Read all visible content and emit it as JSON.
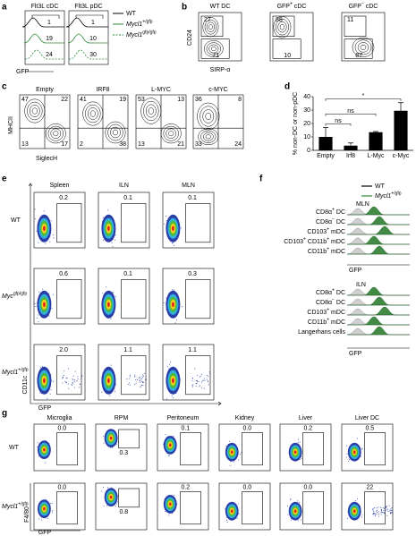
{
  "panels": {
    "a": {
      "label": "a",
      "titles": [
        "Flt3L cDC",
        "Flt3L pDC"
      ],
      "gates": [
        [
          "1",
          "19",
          "24"
        ],
        [
          "1",
          "10",
          "30"
        ]
      ],
      "x_axis": "GFP",
      "legend": [
        [
          "WT"
        ],
        [
          "Mycl1",
          "+/gfp"
        ],
        [
          "Mycl1",
          "gfp/gfp"
        ]
      ]
    },
    "b": {
      "label": "b",
      "titles": [
        [
          "WT DC"
        ],
        [
          "GFP",
          "+",
          " cDC"
        ],
        [
          "GFP",
          "−",
          " cDC"
        ]
      ],
      "gates": [
        [
          "27",
          "71"
        ],
        [
          "88",
          "10"
        ],
        [
          "11",
          "87"
        ]
      ],
      "y_axis": "CD24",
      "x_axis": "SIRP-α"
    },
    "c": {
      "label": "c",
      "titles": [
        "Empty",
        "IRF8",
        "L-MYC",
        "c-MYC"
      ],
      "quadrants": [
        [
          "47",
          "22",
          "13",
          "17"
        ],
        [
          "41",
          "19",
          "2",
          "38"
        ],
        [
          "53",
          "13",
          "13",
          "21"
        ],
        [
          "36",
          "8",
          "33",
          "24"
        ]
      ],
      "y_axis": "MHCII",
      "x_axis": "SiglecH"
    },
    "e": {
      "label": "e",
      "columns": [
        "Spleen",
        "ILN",
        "MLN"
      ],
      "rows": [
        [
          "WT"
        ],
        [
          "Myc",
          "gfp/gfp"
        ],
        [
          "Mycl1",
          "+/gfp"
        ]
      ],
      "gates": [
        [
          "0.2",
          "0.1",
          "0.1"
        ],
        [
          "0.6",
          "0.1",
          "0.3"
        ],
        [
          "2.0",
          "1.1",
          "1.1"
        ]
      ],
      "y_axis": "CD11c",
      "x_axis": "GFP"
    },
    "f": {
      "label": "f",
      "legend": [
        [
          "WT"
        ],
        [
          "Mycl1",
          "+/gfp"
        ]
      ],
      "groups": [
        {
          "title": "MLN",
          "rows": [
            [
              "CD8α",
              "+",
              " DC"
            ],
            [
              "CD8α",
              "−",
              " DC"
            ],
            [
              "CD103",
              "+",
              " mDC"
            ],
            [
              "CD103",
              "+",
              " CD11b",
              "+",
              " mDC"
            ],
            [
              "CD11b",
              "+",
              " mDC"
            ]
          ],
          "x_axis": "GFP"
        },
        {
          "title": "ILN",
          "rows": [
            [
              "CD8α",
              "+",
              " DC"
            ],
            [
              "CD8α",
              "−",
              " DC"
            ],
            [
              "CD103",
              "+",
              " mDC"
            ],
            [
              "CD11b",
              "+",
              " mDC"
            ],
            [
              "Langerhans cells"
            ]
          ],
          "x_axis": "GFP"
        }
      ]
    },
    "g": {
      "label": "g",
      "columns": [
        "Microglia",
        "RPM",
        "Peritoneum",
        "Kidney",
        "Liver",
        "Liver DC"
      ],
      "rows": [
        [
          "WT"
        ],
        [
          "Mycl1",
          "+/gfp"
        ]
      ],
      "gates": [
        [
          "0.0",
          "0.3",
          "0.1",
          "0.0",
          "0.2",
          "0.5"
        ],
        [
          "0.0",
          "0.8",
          "0.2",
          "0.0",
          "0.0",
          "22"
        ]
      ],
      "y_axis": "F4/80",
      "x_axis": "GFP"
    }
  },
  "chart_data": {
    "type": "bar",
    "label": "d",
    "y_label": "% non-DC or non-pDC",
    "categories": [
      "Empty",
      "Irf8",
      "L-Myc",
      "c-Myc"
    ],
    "values": [
      10,
      3.5,
      13.5,
      29.5
    ],
    "errors": [
      7,
      2,
      0.5,
      6
    ],
    "color": "#000000",
    "ylim": [
      0,
      40
    ],
    "yticks": [
      0,
      10,
      20,
      30,
      40
    ],
    "annotations": [
      {
        "text": "ns",
        "from": 0,
        "to": 1
      },
      {
        "text": "ns",
        "from": 0,
        "to": 2
      },
      {
        "text": "*",
        "from": 0,
        "to": 3
      }
    ]
  }
}
